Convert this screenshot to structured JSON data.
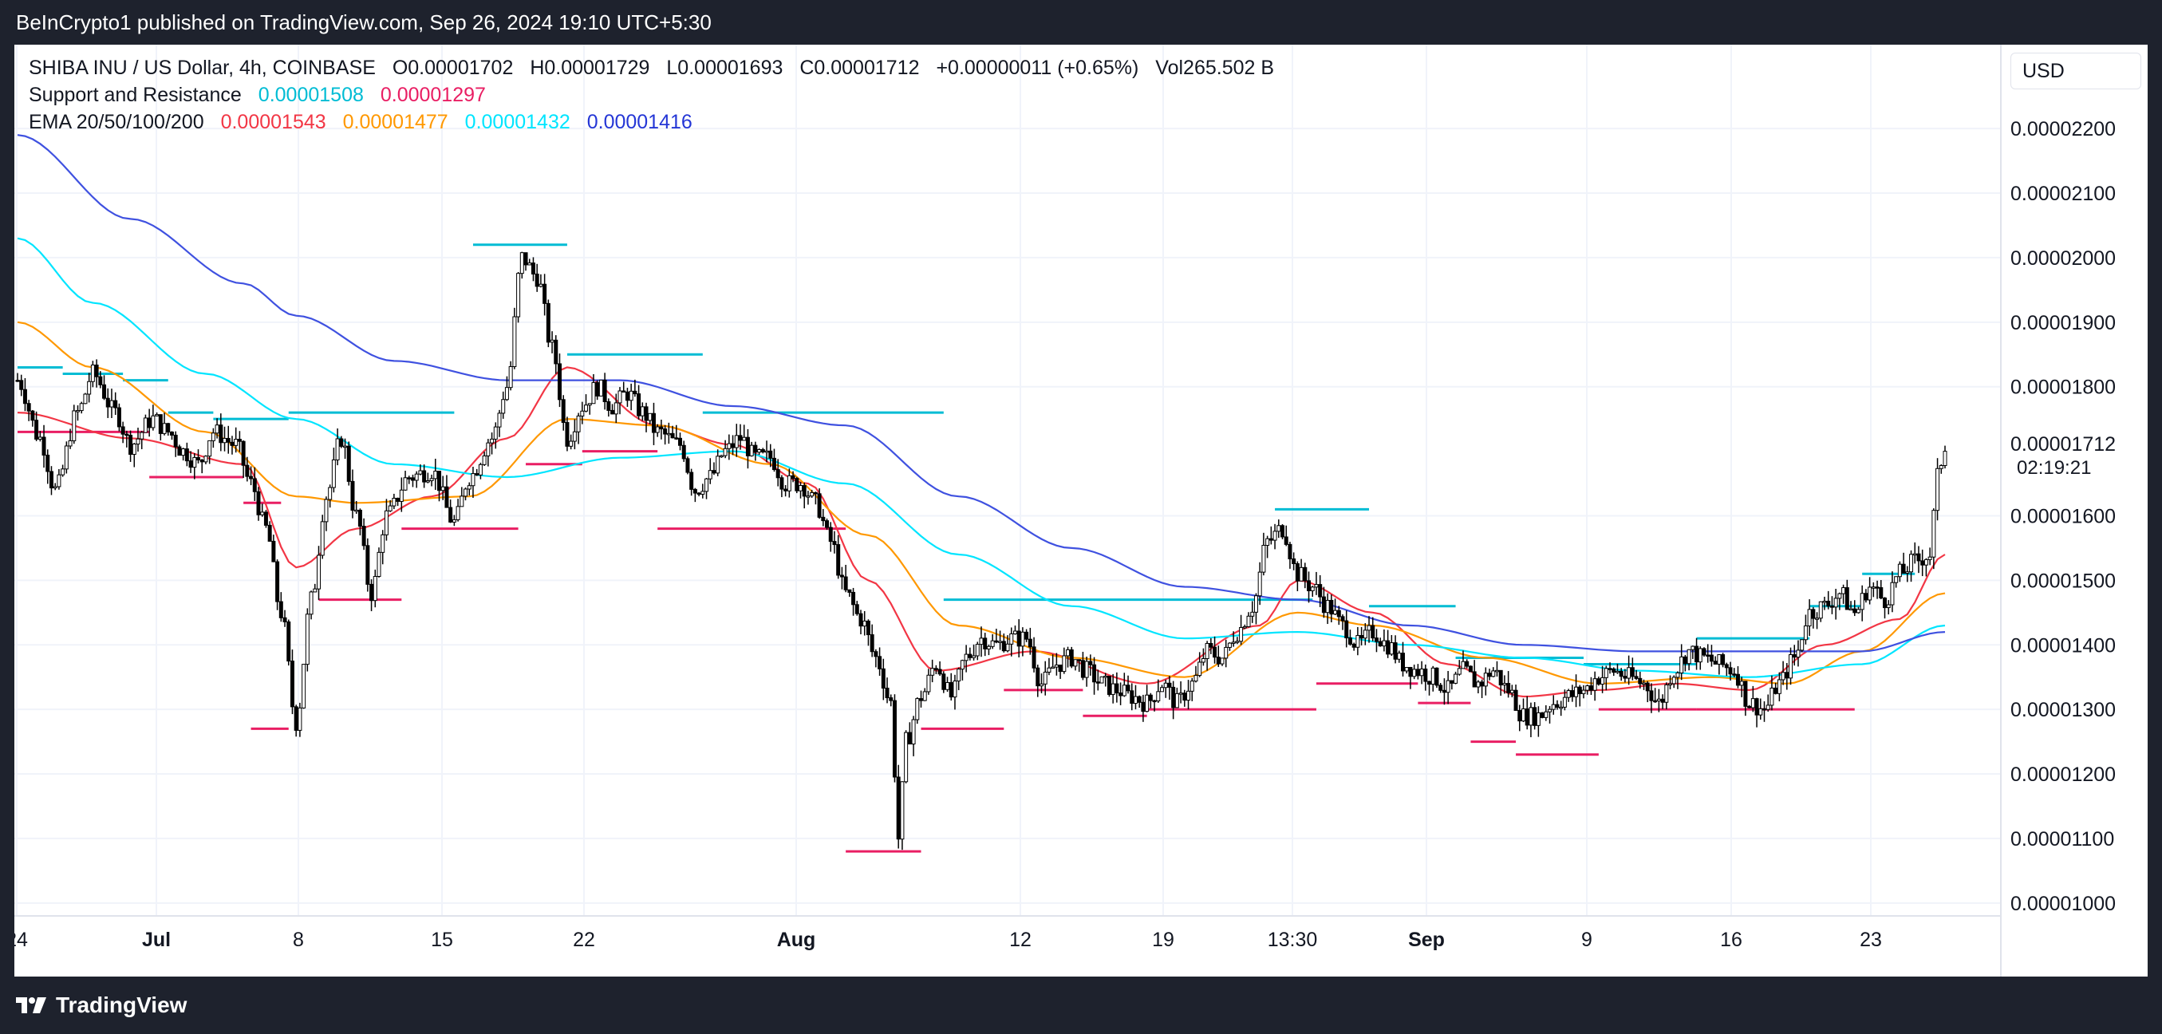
{
  "header": {
    "publisher_text": "BeInCrypto1 published on TradingView.com, Sep 26, 2024 19:10 UTC+5:30"
  },
  "legend": {
    "symbol": "SHIBA INU / US Dollar, 4h, COINBASE",
    "open": "O0.00001702",
    "high": "H0.00001729",
    "low": "L0.00001693",
    "close": "C0.00001712",
    "change": "+0.00000011 (+0.65%)",
    "volume": "Vol265.502 B",
    "sr_label": "Support and Resistance",
    "sr_resistance": "0.00001508",
    "sr_support": "0.00001297",
    "ema_label": "EMA 20/50/100/200",
    "ema20": "0.00001543",
    "ema50": "0.00001477",
    "ema100": "0.00001432",
    "ema200": "0.00001416"
  },
  "currency_button": "USD",
  "countdown": "02:19:21",
  "colors": {
    "resistance": "#00bcd4",
    "support": "#e91e63",
    "ema20": "#f23645",
    "ema50": "#ff9800",
    "ema100": "#00e5ff",
    "ema200": "#3f51e0",
    "candles": "#000000"
  },
  "footer": {
    "brand": "TradingView",
    "logo_icon": "tradingview-logo-icon"
  },
  "chart_data": {
    "type": "candlestick",
    "title": "SHIBA INU / US Dollar, 4h, COINBASE",
    "x_tick_labels": [
      "24",
      "Jul",
      "8",
      "15",
      "22",
      "Aug",
      "12",
      "19",
      "13:30",
      "Sep",
      "9",
      "16",
      "23"
    ],
    "y_tick_labels": [
      "0.00002200",
      "0.00002100",
      "0.00002000",
      "0.00001900",
      "0.00001800",
      "0.00001712",
      "0.00001600",
      "0.00001500",
      "0.00001400",
      "0.00001300",
      "0.00001200",
      "0.00001100",
      "0.00001000"
    ],
    "y_ticks": [
      2.2e-05,
      2.1e-05,
      2e-05,
      1.9e-05,
      1.8e-05,
      1.6e-05,
      1.5e-05,
      1.4e-05,
      1.3e-05,
      1.2e-05,
      1.1e-05,
      1e-05
    ],
    "ylim": [
      9.8e-06,
      2.33e-05
    ],
    "last_price": 1.712e-05,
    "last_price_label": "0.00001712",
    "price_path": [
      [
        0,
        1.81e-05
      ],
      [
        6,
        1.72e-05
      ],
      [
        10,
        1.64e-05
      ],
      [
        16,
        1.76e-05
      ],
      [
        20,
        1.82e-05
      ],
      [
        26,
        1.76e-05
      ],
      [
        30,
        1.71e-05
      ],
      [
        36,
        1.75e-05
      ],
      [
        40,
        1.73e-05
      ],
      [
        44,
        1.7e-05
      ],
      [
        48,
        1.68e-05
      ],
      [
        52,
        1.73e-05
      ],
      [
        58,
        1.71e-05
      ],
      [
        62,
        1.65e-05
      ],
      [
        66,
        1.58e-05
      ],
      [
        70,
        1.45e-05
      ],
      [
        74,
        1.28e-05
      ],
      [
        78,
        1.47e-05
      ],
      [
        82,
        1.63e-05
      ],
      [
        86,
        1.72e-05
      ],
      [
        90,
        1.6e-05
      ],
      [
        94,
        1.48e-05
      ],
      [
        98,
        1.6e-05
      ],
      [
        104,
        1.66e-05
      ],
      [
        110,
        1.67e-05
      ],
      [
        116,
        1.59e-05
      ],
      [
        120,
        1.66e-05
      ],
      [
        126,
        1.72e-05
      ],
      [
        130,
        1.8e-05
      ],
      [
        134,
        2e-05
      ],
      [
        138,
        1.97e-05
      ],
      [
        142,
        1.86e-05
      ],
      [
        146,
        1.72e-05
      ],
      [
        150,
        1.77e-05
      ],
      [
        154,
        1.8e-05
      ],
      [
        158,
        1.77e-05
      ],
      [
        162,
        1.79e-05
      ],
      [
        166,
        1.76e-05
      ],
      [
        170,
        1.73e-05
      ],
      [
        176,
        1.71e-05
      ],
      [
        180,
        1.64e-05
      ],
      [
        184,
        1.66e-05
      ],
      [
        188,
        1.7e-05
      ],
      [
        192,
        1.72e-05
      ],
      [
        196,
        1.69e-05
      ],
      [
        200,
        1.69e-05
      ],
      [
        204,
        1.65e-05
      ],
      [
        208,
        1.65e-05
      ],
      [
        212,
        1.62e-05
      ],
      [
        216,
        1.56e-05
      ],
      [
        220,
        1.48e-05
      ],
      [
        224,
        1.44e-05
      ],
      [
        228,
        1.38e-05
      ],
      [
        232,
        1.31e-05
      ],
      [
        234,
        1.1e-05
      ],
      [
        236,
        1.25e-05
      ],
      [
        240,
        1.32e-05
      ],
      [
        244,
        1.37e-05
      ],
      [
        248,
        1.32e-05
      ],
      [
        252,
        1.38e-05
      ],
      [
        256,
        1.41e-05
      ],
      [
        260,
        1.4e-05
      ],
      [
        264,
        1.41e-05
      ],
      [
        268,
        1.41e-05
      ],
      [
        272,
        1.34e-05
      ],
      [
        276,
        1.37e-05
      ],
      [
        280,
        1.38e-05
      ],
      [
        284,
        1.36e-05
      ],
      [
        288,
        1.34e-05
      ],
      [
        292,
        1.33e-05
      ],
      [
        296,
        1.32e-05
      ],
      [
        300,
        1.31e-05
      ],
      [
        304,
        1.34e-05
      ],
      [
        308,
        1.31e-05
      ],
      [
        312,
        1.34e-05
      ],
      [
        316,
        1.39e-05
      ],
      [
        320,
        1.38e-05
      ],
      [
        324,
        1.42e-05
      ],
      [
        328,
        1.46e-05
      ],
      [
        332,
        1.56e-05
      ],
      [
        336,
        1.58e-05
      ],
      [
        340,
        1.51e-05
      ],
      [
        344,
        1.49e-05
      ],
      [
        348,
        1.46e-05
      ],
      [
        352,
        1.43e-05
      ],
      [
        356,
        1.4e-05
      ],
      [
        360,
        1.42e-05
      ],
      [
        364,
        1.4e-05
      ],
      [
        368,
        1.37e-05
      ],
      [
        372,
        1.36e-05
      ],
      [
        376,
        1.35e-05
      ],
      [
        380,
        1.33e-05
      ],
      [
        384,
        1.36e-05
      ],
      [
        388,
        1.34e-05
      ],
      [
        392,
        1.36e-05
      ],
      [
        396,
        1.33e-05
      ],
      [
        400,
        1.29e-05
      ],
      [
        404,
        1.29e-05
      ],
      [
        408,
        1.31e-05
      ],
      [
        412,
        1.32e-05
      ],
      [
        416,
        1.33e-05
      ],
      [
        420,
        1.35e-05
      ],
      [
        424,
        1.36e-05
      ],
      [
        428,
        1.35e-05
      ],
      [
        432,
        1.34e-05
      ],
      [
        436,
        1.31e-05
      ],
      [
        440,
        1.36e-05
      ],
      [
        444,
        1.39e-05
      ],
      [
        448,
        1.38e-05
      ],
      [
        452,
        1.37e-05
      ],
      [
        456,
        1.36e-05
      ],
      [
        460,
        1.31e-05
      ],
      [
        464,
        1.3e-05
      ],
      [
        468,
        1.34e-05
      ],
      [
        472,
        1.38e-05
      ],
      [
        476,
        1.45e-05
      ],
      [
        480,
        1.46e-05
      ],
      [
        484,
        1.48e-05
      ],
      [
        488,
        1.45e-05
      ],
      [
        492,
        1.49e-05
      ],
      [
        496,
        1.47e-05
      ],
      [
        500,
        1.51e-05
      ],
      [
        504,
        1.53e-05
      ],
      [
        508,
        1.54e-05
      ],
      [
        510,
        1.66e-05
      ],
      [
        512,
        1.71e-05
      ]
    ],
    "ema_series": [
      {
        "name": "EMA 20",
        "color": "#f23645",
        "points": [
          [
            0,
            1.76e-05
          ],
          [
            30,
            1.72e-05
          ],
          [
            60,
            1.68e-05
          ],
          [
            74,
            1.52e-05
          ],
          [
            90,
            1.58e-05
          ],
          [
            110,
            1.63e-05
          ],
          [
            130,
            1.72e-05
          ],
          [
            146,
            1.83e-05
          ],
          [
            170,
            1.74e-05
          ],
          [
            190,
            1.71e-05
          ],
          [
            210,
            1.65e-05
          ],
          [
            226,
            1.5e-05
          ],
          [
            244,
            1.36e-05
          ],
          [
            270,
            1.39e-05
          ],
          [
            300,
            1.34e-05
          ],
          [
            330,
            1.43e-05
          ],
          [
            340,
            1.5e-05
          ],
          [
            360,
            1.45e-05
          ],
          [
            380,
            1.37e-05
          ],
          [
            400,
            1.32e-05
          ],
          [
            420,
            1.33e-05
          ],
          [
            440,
            1.34e-05
          ],
          [
            460,
            1.33e-05
          ],
          [
            480,
            1.4e-05
          ],
          [
            500,
            1.44e-05
          ],
          [
            512,
            1.54e-05
          ]
        ]
      },
      {
        "name": "EMA 50",
        "color": "#ff9800",
        "points": [
          [
            0,
            1.9e-05
          ],
          [
            20,
            1.83e-05
          ],
          [
            50,
            1.73e-05
          ],
          [
            74,
            1.63e-05
          ],
          [
            90,
            1.62e-05
          ],
          [
            120,
            1.63e-05
          ],
          [
            146,
            1.75e-05
          ],
          [
            170,
            1.74e-05
          ],
          [
            200,
            1.68e-05
          ],
          [
            226,
            1.57e-05
          ],
          [
            250,
            1.43e-05
          ],
          [
            280,
            1.38e-05
          ],
          [
            310,
            1.35e-05
          ],
          [
            340,
            1.45e-05
          ],
          [
            360,
            1.43e-05
          ],
          [
            390,
            1.38e-05
          ],
          [
            420,
            1.34e-05
          ],
          [
            450,
            1.35e-05
          ],
          [
            470,
            1.34e-05
          ],
          [
            490,
            1.39e-05
          ],
          [
            512,
            1.48e-05
          ]
        ]
      },
      {
        "name": "EMA 100",
        "color": "#00e5ff",
        "points": [
          [
            0,
            2.03e-05
          ],
          [
            20,
            1.93e-05
          ],
          [
            50,
            1.82e-05
          ],
          [
            74,
            1.75e-05
          ],
          [
            100,
            1.68e-05
          ],
          [
            130,
            1.66e-05
          ],
          [
            160,
            1.69e-05
          ],
          [
            190,
            1.7e-05
          ],
          [
            220,
            1.65e-05
          ],
          [
            250,
            1.54e-05
          ],
          [
            280,
            1.46e-05
          ],
          [
            310,
            1.41e-05
          ],
          [
            340,
            1.42e-05
          ],
          [
            370,
            1.4e-05
          ],
          [
            400,
            1.38e-05
          ],
          [
            430,
            1.36e-05
          ],
          [
            460,
            1.35e-05
          ],
          [
            490,
            1.37e-05
          ],
          [
            512,
            1.43e-05
          ]
        ]
      },
      {
        "name": "EMA 200",
        "color": "#3f51e0",
        "points": [
          [
            0,
            2.19e-05
          ],
          [
            30,
            2.06e-05
          ],
          [
            60,
            1.96e-05
          ],
          [
            74,
            1.91e-05
          ],
          [
            100,
            1.84e-05
          ],
          [
            130,
            1.81e-05
          ],
          [
            160,
            1.81e-05
          ],
          [
            190,
            1.77e-05
          ],
          [
            220,
            1.74e-05
          ],
          [
            250,
            1.63e-05
          ],
          [
            280,
            1.55e-05
          ],
          [
            310,
            1.49e-05
          ],
          [
            340,
            1.47e-05
          ],
          [
            370,
            1.43e-05
          ],
          [
            400,
            1.4e-05
          ],
          [
            430,
            1.39e-05
          ],
          [
            460,
            1.39e-05
          ],
          [
            490,
            1.39e-05
          ],
          [
            512,
            1.42e-05
          ]
        ]
      }
    ],
    "resistance_levels": [
      [
        0,
        12,
        1.83e-05
      ],
      [
        12,
        28,
        1.82e-05
      ],
      [
        28,
        40,
        1.81e-05
      ],
      [
        40,
        52,
        1.76e-05
      ],
      [
        52,
        72,
        1.75e-05
      ],
      [
        72,
        116,
        1.76e-05
      ],
      [
        121,
        146,
        2.02e-05
      ],
      [
        146,
        182,
        1.85e-05
      ],
      [
        182,
        246,
        1.76e-05
      ],
      [
        246,
        344,
        1.47e-05
      ],
      [
        334,
        359,
        1.61e-05
      ],
      [
        359,
        382,
        1.46e-05
      ],
      [
        382,
        416,
        1.38e-05
      ],
      [
        416,
        446,
        1.37e-05
      ],
      [
        446,
        476,
        1.41e-05
      ],
      [
        476,
        490,
        1.46e-05
      ],
      [
        490,
        504,
        1.51e-05
      ]
    ],
    "support_levels": [
      [
        0,
        35,
        1.73e-05
      ],
      [
        35,
        60,
        1.66e-05
      ],
      [
        60,
        70,
        1.62e-05
      ],
      [
        62,
        72,
        1.27e-05
      ],
      [
        80,
        102,
        1.47e-05
      ],
      [
        102,
        133,
        1.58e-05
      ],
      [
        135,
        150,
        1.68e-05
      ],
      [
        150,
        170,
        1.7e-05
      ],
      [
        170,
        220,
        1.58e-05
      ],
      [
        220,
        240,
        1.08e-05
      ],
      [
        240,
        262,
        1.27e-05
      ],
      [
        262,
        283,
        1.33e-05
      ],
      [
        283,
        300,
        1.29e-05
      ],
      [
        300,
        345,
        1.3e-05
      ],
      [
        345,
        372,
        1.34e-05
      ],
      [
        372,
        386,
        1.31e-05
      ],
      [
        386,
        398,
        1.25e-05
      ],
      [
        398,
        420,
        1.23e-05
      ],
      [
        420,
        446,
        1.3e-05
      ],
      [
        446,
        455,
        1.3e-05
      ],
      [
        455,
        488,
        1.3e-05
      ]
    ],
    "x_max": 512
  }
}
